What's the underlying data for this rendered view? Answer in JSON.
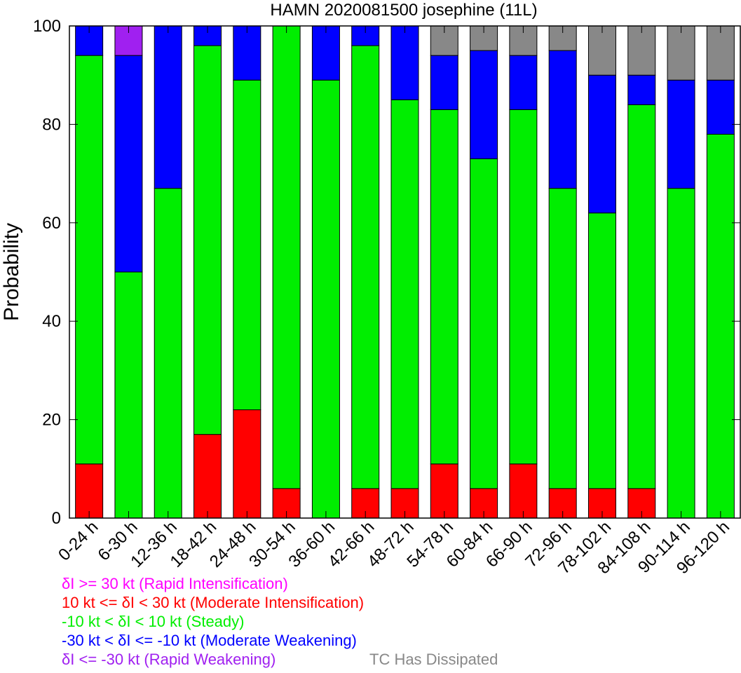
{
  "chart_data": {
    "type": "bar",
    "stacked": true,
    "title": "HAMN 2020081500 josephine (11L)",
    "xlabel": "",
    "ylabel": "Probability",
    "ylim": [
      0,
      100
    ],
    "yticks": [
      0,
      20,
      40,
      60,
      80,
      100
    ],
    "grid": false,
    "categories": [
      "0-24 h",
      "6-30 h",
      "12-36 h",
      "18-42 h",
      "24-48 h",
      "30-54 h",
      "36-60 h",
      "42-66 h",
      "48-72 h",
      "54-78 h",
      "60-84 h",
      "66-90 h",
      "72-96 h",
      "78-102 h",
      "84-108 h",
      "90-114 h",
      "96-120 h"
    ],
    "series": [
      {
        "name": "δI >= 30 kt (Rapid Intensification)",
        "color": "#ff00ff",
        "values": [
          0,
          0,
          0,
          0,
          0,
          0,
          0,
          0,
          0,
          0,
          0,
          0,
          0,
          0,
          0,
          0,
          0
        ]
      },
      {
        "name": "10 kt <= δI < 30 kt (Moderate Intensification)",
        "color": "#ff0000",
        "values": [
          11,
          0,
          0,
          17,
          22,
          6,
          0,
          6,
          6,
          11,
          6,
          11,
          6,
          6,
          6,
          0,
          0
        ]
      },
      {
        "name": "-10 kt < δI < 10 kt (Steady)",
        "color": "#00ee00",
        "values": [
          83,
          50,
          67,
          79,
          67,
          94,
          89,
          90,
          79,
          72,
          67,
          72,
          61,
          56,
          78,
          67,
          78
        ]
      },
      {
        "name": "-30 kt < δI <= -10 kt (Moderate Weakening)",
        "color": "#0000ff",
        "values": [
          6,
          44,
          33,
          4,
          11,
          0,
          11,
          4,
          15,
          11,
          22,
          11,
          28,
          28,
          6,
          22,
          11
        ]
      },
      {
        "name": "δI <= -30 kt (Rapid Weakening)",
        "color": "#a020f0",
        "values": [
          0,
          6,
          0,
          0,
          0,
          0,
          0,
          0,
          0,
          0,
          0,
          0,
          0,
          0,
          0,
          0,
          0
        ]
      },
      {
        "name": "TC Has Dissipated",
        "color": "#888888",
        "values": [
          0,
          0,
          0,
          0,
          0,
          0,
          0,
          0,
          0,
          6,
          5,
          6,
          5,
          10,
          10,
          11,
          11
        ]
      }
    ],
    "legend_position": "bottom-left"
  }
}
